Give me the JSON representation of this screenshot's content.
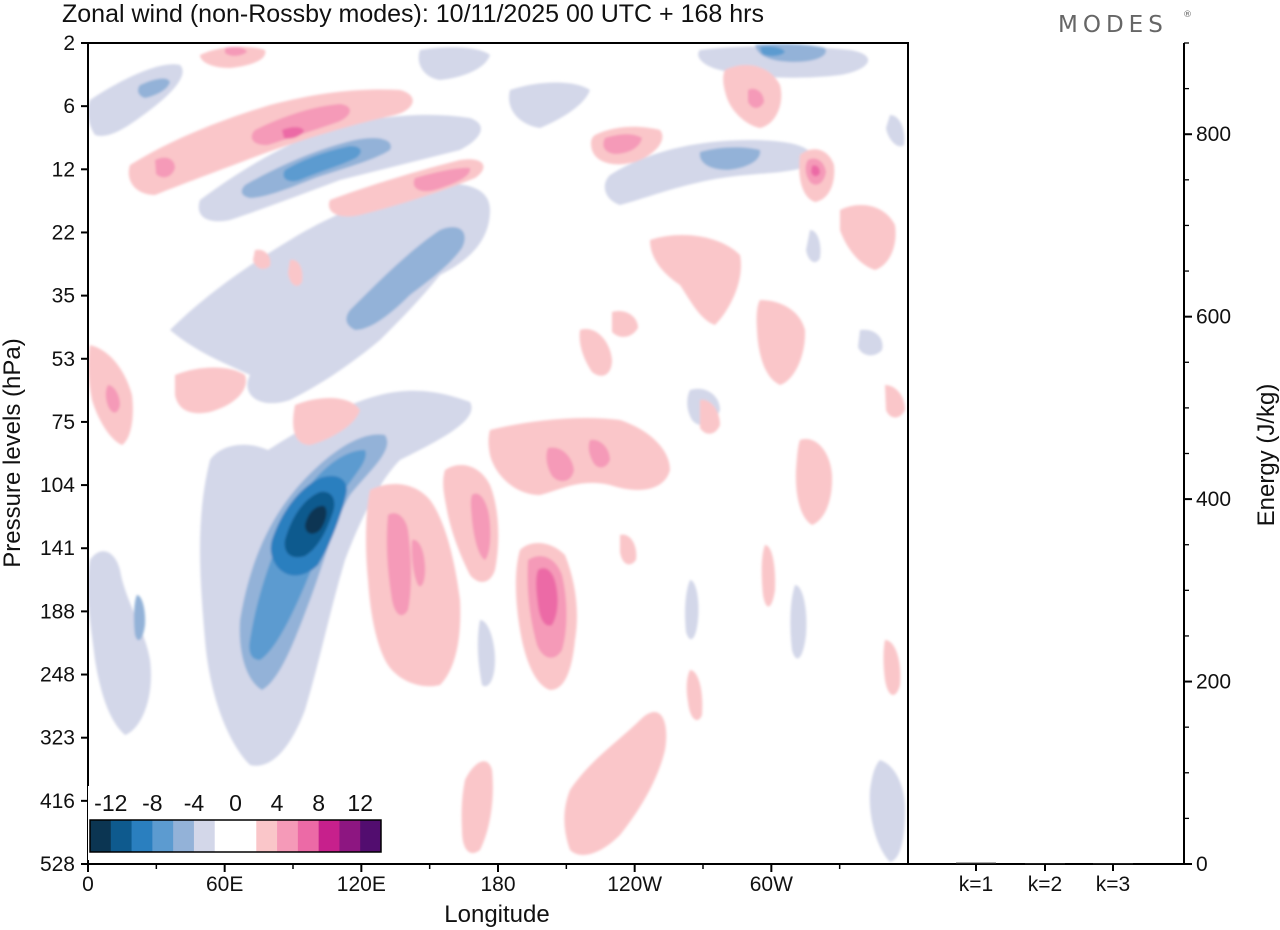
{
  "chart_data": {
    "type": "heatmap",
    "title": "Zonal wind (non-Rossby modes):  10/11/2025  00 UTC  + 168 hrs",
    "logo": "MODES",
    "xlabel": "Longitude",
    "ylabel": "Pressure levels (hPa)",
    "x_ticks": [
      "0",
      "60E",
      "120E",
      "180",
      "120W",
      "60W"
    ],
    "y_ticks": [
      "2",
      "6",
      "12",
      "22",
      "35",
      "53",
      "75",
      "104",
      "141",
      "188",
      "248",
      "323",
      "416",
      "528"
    ],
    "colorbar": {
      "labels": [
        "-12",
        "-8",
        "-4",
        "0",
        "4",
        "8",
        "12"
      ],
      "colors": [
        "#0b3552",
        "#0e5a8e",
        "#2a7fbf",
        "#5c9bd0",
        "#93b2d8",
        "#d3d7e9",
        "#ffffff",
        "#ffffff",
        "#fac6c9",
        "#f59ab8",
        "#ec6aa6",
        "#c7208c",
        "#8d1681",
        "#520d6f"
      ]
    },
    "features": [
      {
        "sign": "negative",
        "peak": -13,
        "lon": 100,
        "level": 130
      },
      {
        "sign": "negative",
        "peak": -8,
        "lon": 115,
        "level": 12
      },
      {
        "sign": "positive",
        "peak": 9,
        "lon": 200,
        "level": 175
      },
      {
        "sign": "positive",
        "peak": 7,
        "lon": 135,
        "level": 170
      },
      {
        "sign": "positive",
        "peak": 9,
        "lon": 85,
        "level": 8
      },
      {
        "sign": "positive",
        "peak": 9,
        "lon": 318,
        "level": 12
      },
      {
        "sign": "positive",
        "peak": 6,
        "lon": 185,
        "level": 145
      }
    ],
    "energy": {
      "ylabel": "Energy (J/kg)",
      "y_ticks": [
        "0",
        "200",
        "400",
        "600",
        "800"
      ],
      "ylim": [
        0,
        900
      ],
      "categories": [
        "k=1",
        "k=2",
        "k=3"
      ],
      "values": [
        1.5,
        1.0,
        1.0
      ]
    }
  }
}
